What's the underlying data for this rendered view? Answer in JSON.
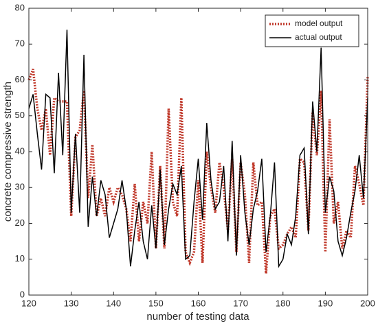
{
  "chart_data": {
    "type": "line",
    "xlabel": "number of testing data",
    "ylabel": "concrete compressive strength",
    "x": [
      120,
      121,
      122,
      123,
      124,
      125,
      126,
      127,
      128,
      129,
      130,
      131,
      132,
      133,
      134,
      135,
      136,
      137,
      138,
      139,
      140,
      141,
      142,
      143,
      144,
      145,
      146,
      147,
      148,
      149,
      150,
      151,
      152,
      153,
      154,
      155,
      156,
      157,
      158,
      159,
      160,
      161,
      162,
      163,
      164,
      165,
      166,
      167,
      168,
      169,
      170,
      171,
      172,
      173,
      174,
      175,
      176,
      177,
      178,
      179,
      180,
      181,
      182,
      183,
      184,
      185,
      186,
      187,
      188,
      189,
      190,
      191,
      192,
      193,
      194,
      195,
      196,
      197,
      198,
      199,
      200
    ],
    "series": [
      {
        "name": "model output",
        "color": "#c0392b",
        "style": "dotted",
        "values": [
          60,
          63,
          52,
          46,
          52,
          39,
          55,
          54,
          54,
          54,
          22,
          44,
          46,
          57,
          27,
          42,
          22,
          27,
          22,
          30,
          26,
          30,
          28,
          24,
          15,
          31,
          15,
          26,
          20,
          40,
          13,
          36,
          13,
          52,
          26,
          22,
          55,
          12,
          9,
          12,
          32,
          9,
          40,
          30,
          23,
          37,
          30,
          18,
          38,
          12,
          37,
          28,
          9,
          37,
          25,
          26,
          6,
          22,
          24,
          13,
          14,
          17,
          19,
          16,
          38,
          37,
          18,
          51,
          39,
          57,
          12,
          49,
          20,
          26,
          13,
          18,
          16,
          36,
          31,
          25,
          61
        ]
      },
      {
        "name": "actual output",
        "color": "#000000",
        "style": "solid",
        "values": [
          52,
          56,
          45,
          35,
          56,
          55,
          34,
          62,
          39,
          74,
          23,
          45,
          23,
          67,
          19,
          33,
          22,
          32,
          28,
          16,
          20,
          24,
          32,
          24,
          8,
          18,
          26,
          15,
          10,
          25,
          13,
          35,
          14,
          24,
          31,
          28,
          36,
          10,
          11,
          26,
          38,
          21,
          48,
          32,
          24,
          26,
          36,
          15,
          43,
          11,
          39,
          23,
          14,
          24,
          29,
          38,
          12,
          22,
          37,
          8,
          10,
          17,
          14,
          22,
          39,
          41,
          17,
          54,
          40,
          69,
          23,
          33,
          29,
          15,
          11,
          16,
          23,
          29,
          39,
          27,
          55
        ]
      }
    ],
    "xlim": [
      120,
      200
    ],
    "xticks": [
      120,
      130,
      140,
      150,
      160,
      170,
      180,
      190,
      200
    ],
    "ylim": [
      0,
      80
    ],
    "yticks": [
      0,
      10,
      20,
      30,
      40,
      50,
      60,
      70,
      80
    ],
    "legend": "upper right"
  }
}
